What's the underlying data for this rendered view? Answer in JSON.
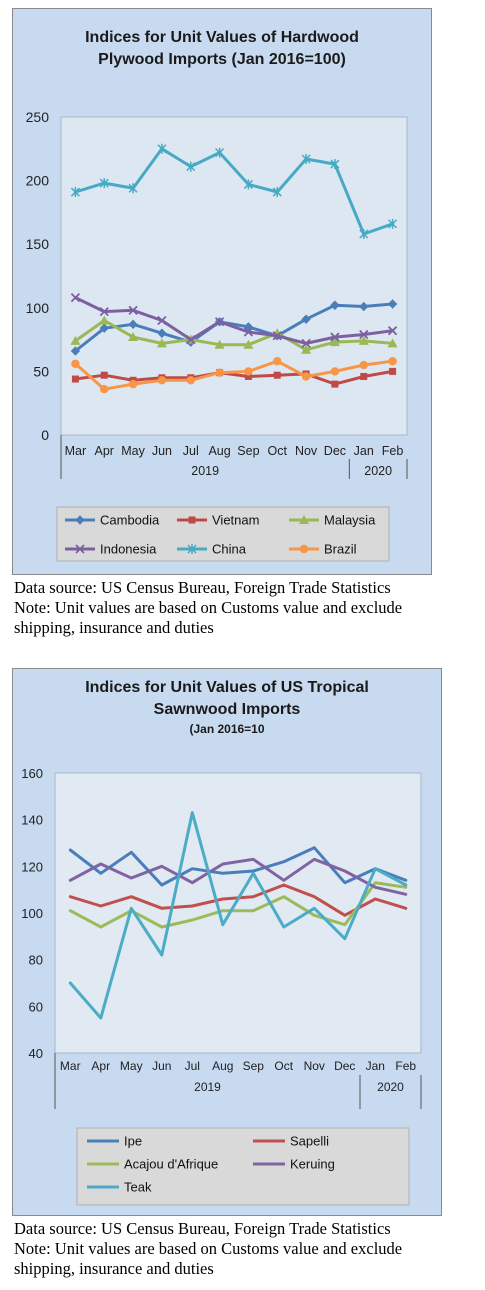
{
  "chart_data": [
    {
      "type": "line",
      "title": "Indices for Unit Values of Hardwood Plywood Imports (Jan 2016=100)",
      "title_lines": [
        "Indices for Unit Values of Hardwood",
        "Plywood Imports (Jan 2016=100)"
      ],
      "categories": [
        "Mar",
        "Apr",
        "May",
        "Jun",
        "Jul",
        "Aug",
        "Sep",
        "Oct",
        "Nov",
        "Dec",
        "Jan",
        "Feb"
      ],
      "year_groups": [
        {
          "label": "2019",
          "count": 10
        },
        {
          "label": "2020",
          "count": 2
        }
      ],
      "ylim": [
        0,
        250
      ],
      "yticks": [
        0,
        50,
        100,
        150,
        200,
        250
      ],
      "grid": false,
      "legend_position": "bottom",
      "series": [
        {
          "name": "Cambodia",
          "color": "#4a7ebb",
          "marker": "diamond",
          "values": [
            66,
            84,
            87,
            80,
            73,
            89,
            85,
            78,
            91,
            102,
            101,
            103
          ]
        },
        {
          "name": "Vietnam",
          "color": "#be4b48",
          "marker": "square",
          "values": [
            44,
            47,
            43,
            45,
            45,
            49,
            46,
            47,
            48,
            40,
            46,
            50
          ]
        },
        {
          "name": "Malaysia",
          "color": "#98b954",
          "marker": "triangle",
          "values": [
            74,
            90,
            77,
            72,
            75,
            71,
            71,
            80,
            67,
            73,
            74,
            72
          ]
        },
        {
          "name": "Indonesia",
          "color": "#7d60a0",
          "marker": "x",
          "values": [
            108,
            97,
            98,
            90,
            75,
            89,
            81,
            78,
            72,
            77,
            79,
            82
          ]
        },
        {
          "name": "China",
          "color": "#46aac5",
          "marker": "star",
          "values": [
            191,
            198,
            194,
            225,
            211,
            222,
            197,
            191,
            217,
            213,
            158,
            166
          ]
        },
        {
          "name": "Brazil",
          "color": "#f79646",
          "marker": "circle",
          "values": [
            56,
            36,
            40,
            43,
            43,
            49,
            50,
            58,
            46,
            50,
            55,
            58
          ]
        }
      ]
    },
    {
      "type": "line",
      "title": "Indices for Unit Values of US Tropical Sawnwood Imports (Jan 2016=10",
      "title_lines": [
        "Indices for Unit Values of US Tropical",
        "Sawnwood Imports"
      ],
      "subtitle": "(Jan 2016=10",
      "categories": [
        "Mar",
        "Apr",
        "May",
        "Jun",
        "Jul",
        "Aug",
        "Sep",
        "Oct",
        "Nov",
        "Dec",
        "Jan",
        "Feb"
      ],
      "year_groups": [
        {
          "label": "2019",
          "count": 10
        },
        {
          "label": "2020",
          "count": 2
        }
      ],
      "ylim": [
        40,
        160
      ],
      "yticks": [
        40,
        60,
        80,
        100,
        120,
        140,
        160
      ],
      "grid": false,
      "legend_position": "bottom",
      "series": [
        {
          "name": "Ipe",
          "color": "#4a7ebb",
          "values": [
            127,
            117,
            126,
            112,
            119,
            117,
            118,
            122,
            128,
            113,
            119,
            114
          ]
        },
        {
          "name": "Sapelli",
          "color": "#c0504d",
          "values": [
            107,
            103,
            107,
            102,
            103,
            106,
            107,
            112,
            107,
            99,
            106,
            102
          ]
        },
        {
          "name": "Acajou d'Afrique",
          "color": "#9bbb59",
          "values": [
            101,
            94,
            101,
            94,
            97,
            101,
            101,
            107,
            99,
            95,
            113,
            111
          ]
        },
        {
          "name": "Keruing",
          "color": "#8064a2",
          "values": [
            114,
            121,
            115,
            120,
            113,
            121,
            123,
            114,
            123,
            118,
            111,
            108
          ]
        },
        {
          "name": "Teak",
          "color": "#4bacc6",
          "values": [
            70,
            55,
            102,
            82,
            143,
            95,
            117,
            94,
            102,
            89,
            119,
            112
          ]
        }
      ]
    }
  ],
  "notes": [
    {
      "lines": [
        "Data source: US Census Bureau, Foreign Trade Statistics",
        "Note: Unit values are based on Customs value and exclude",
        "shipping, insurance and duties"
      ]
    },
    {
      "lines": [
        "Data source: US Census Bureau, Foreign Trade Statistics",
        "Note: Unit values are based on Customs value and exclude",
        "shipping, insurance and duties"
      ]
    }
  ]
}
